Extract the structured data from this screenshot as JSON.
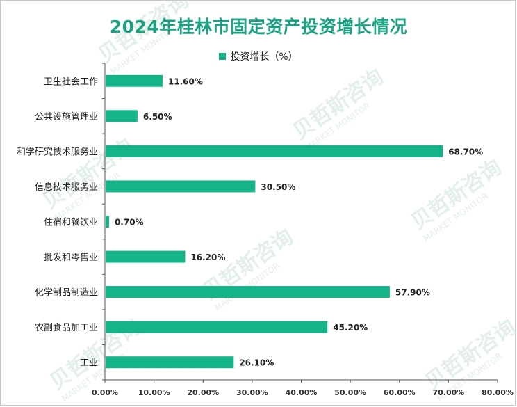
{
  "colors": {
    "title": "#1aa283",
    "bar": "#15b488",
    "axis": "#555555",
    "watermark": "#e3efe9"
  },
  "watermark": {
    "cn": "贝哲斯咨询",
    "en": "MARKET MONITOR"
  },
  "chart_data": {
    "type": "bar",
    "orientation": "horizontal",
    "title": "2024年桂林市固定资产投资增长情况",
    "legend_position": "top",
    "grid": false,
    "categories": [
      "卫生社会工作",
      "公共设施管理业",
      "和学研究技术服务业",
      "信息技术服务业",
      "住宿和餐饮业",
      "批发和零售业",
      "化学制品制造业",
      "农副食品加工业",
      "工业"
    ],
    "series": [
      {
        "name": "投资增长（%）",
        "values": [
          11.6,
          6.5,
          68.7,
          30.5,
          0.7,
          16.2,
          57.9,
          45.2,
          26.1
        ]
      }
    ],
    "value_labels": [
      "11.60%",
      "6.50%",
      "68.70%",
      "30.50%",
      "0.70%",
      "16.20%",
      "57.90%",
      "45.20%",
      "26.10%"
    ],
    "xlim": [
      0,
      80
    ],
    "x_ticks": [
      0,
      10,
      20,
      30,
      40,
      50,
      60,
      70,
      80
    ],
    "x_tick_labels": [
      "0.00%",
      "10.00%",
      "20.00%",
      "30.00%",
      "40.00%",
      "50.00%",
      "60.00%",
      "70.00%",
      "80.00%"
    ]
  }
}
